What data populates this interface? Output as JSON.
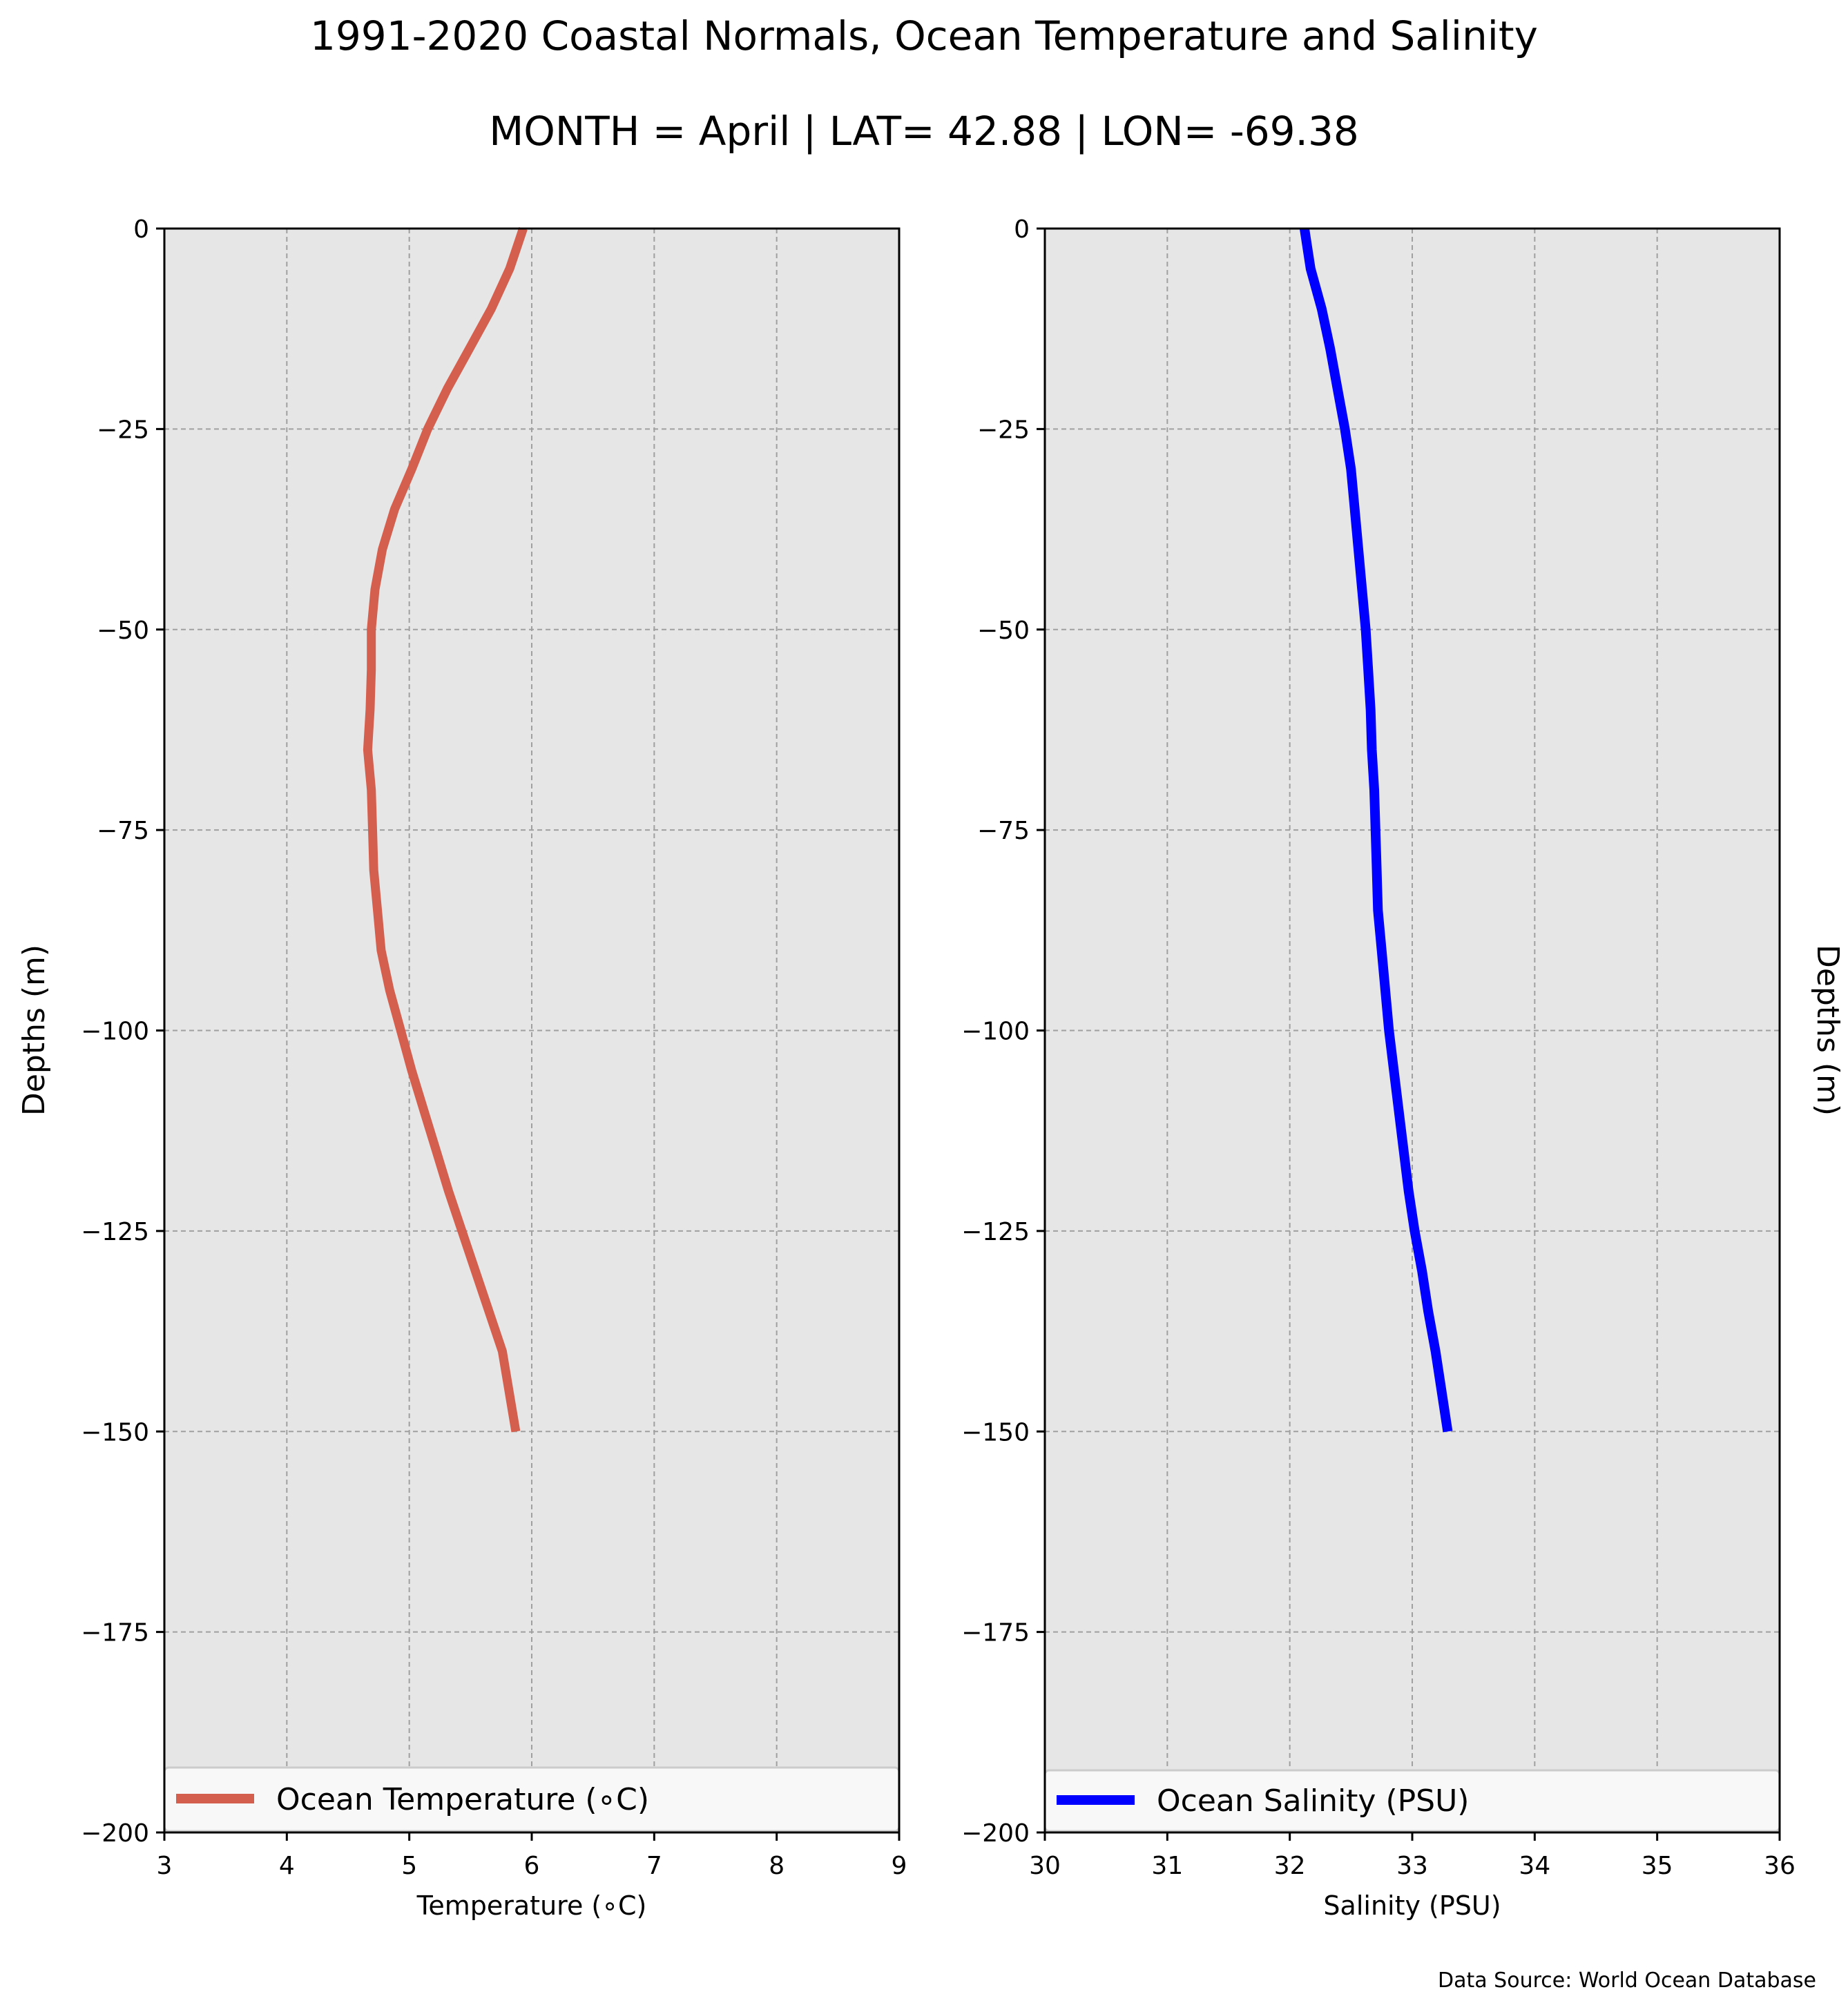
{
  "figure": {
    "title": "1991-2020 Coastal Normals, Ocean Temperature and Salinity",
    "subtitle": "MONTH = April | LAT= 42.88 | LON= -69.38",
    "source_note": "Data Source: World Ocean Database"
  },
  "colors": {
    "plot_background": "#e6e6e6",
    "grid": "#a0a0a0",
    "temperature_line": "#d45f4e",
    "salinity_line": "#0000ff"
  },
  "chart_data": [
    {
      "type": "line",
      "xlabel": "Temperature ($^\\circ$C)",
      "xlabel_display": "Temperature (∘C)",
      "ylabel": "Depths (m)",
      "xlim": [
        3,
        9
      ],
      "ylim": [
        -200,
        0
      ],
      "xticks": [
        3,
        4,
        5,
        6,
        7,
        8,
        9
      ],
      "yticks": [
        0,
        -25,
        -50,
        -75,
        -100,
        -125,
        -150,
        -175,
        -200
      ],
      "ytick_labels": [
        "0",
        "−25",
        "−50",
        "−75",
        "−100",
        "−125",
        "−150",
        "−175",
        "−200"
      ],
      "grid": true,
      "legend_position": "lower-center",
      "series": [
        {
          "name": "Ocean Temperature (∘C)",
          "x": [
            5.93,
            5.82,
            5.67,
            5.49,
            5.31,
            5.15,
            5.02,
            4.88,
            4.78,
            4.72,
            4.69,
            4.69,
            4.68,
            4.66,
            4.69,
            4.7,
            4.71,
            4.74,
            4.77,
            4.84,
            4.93,
            5.02,
            5.12,
            5.22,
            5.32,
            5.43,
            5.54,
            5.65,
            5.76,
            5.87
          ],
          "y": [
            0,
            -5,
            -10,
            -15,
            -20,
            -25,
            -30,
            -35,
            -40,
            -45,
            -50,
            -55,
            -60,
            -65,
            -70,
            -75,
            -80,
            -85,
            -90,
            -95,
            -100,
            -105,
            -110,
            -115,
            -120,
            -125,
            -130,
            -135,
            -140,
            -150
          ]
        }
      ]
    },
    {
      "type": "line",
      "xlabel": "Salinity (PSU)",
      "ylabel": "Depths (m)",
      "xlim": [
        30,
        36
      ],
      "ylim": [
        -200,
        0
      ],
      "xticks": [
        30,
        31,
        32,
        33,
        34,
        35,
        36
      ],
      "yticks": [
        0,
        -25,
        -50,
        -75,
        -100,
        -125,
        -150,
        -175,
        -200
      ],
      "ytick_labels": [
        "0",
        "−25",
        "−50",
        "−75",
        "−100",
        "−125",
        "−150",
        "−175",
        "−200"
      ],
      "grid": true,
      "legend_position": "lower-center",
      "series": [
        {
          "name": "Ocean Salinity (PSU)",
          "x": [
            32.12,
            32.17,
            32.26,
            32.33,
            32.39,
            32.45,
            32.5,
            32.53,
            32.56,
            32.59,
            32.62,
            32.64,
            32.66,
            32.67,
            32.69,
            32.7,
            32.71,
            32.72,
            32.75,
            32.78,
            32.81,
            32.85,
            32.89,
            32.93,
            32.97,
            33.02,
            33.08,
            33.13,
            33.19,
            33.29
          ],
          "y": [
            0,
            -5,
            -10,
            -15,
            -20,
            -25,
            -30,
            -35,
            -40,
            -45,
            -50,
            -55,
            -60,
            -65,
            -70,
            -75,
            -80,
            -85,
            -90,
            -95,
            -100,
            -105,
            -110,
            -115,
            -120,
            -125,
            -130,
            -135,
            -140,
            -150
          ]
        }
      ]
    }
  ]
}
